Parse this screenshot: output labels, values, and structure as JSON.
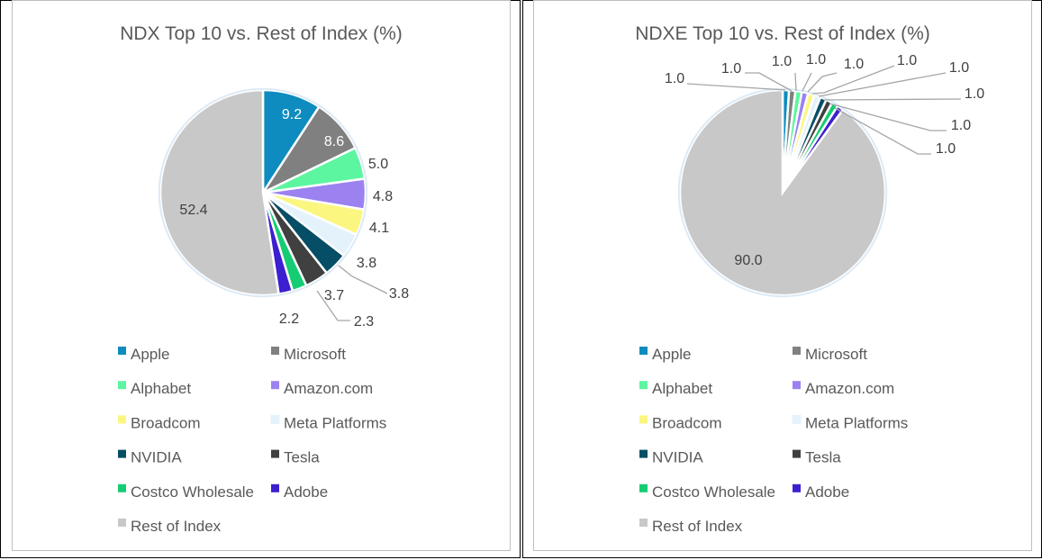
{
  "colors": {
    "Apple": "#0e8cbf",
    "Microsoft": "#808080",
    "Alphabet": "#5cf5a0",
    "Amazon.com": "#9b82f0",
    "Broadcom": "#fbf680",
    "Meta Platforms": "#e4f2fc",
    "NVIDIA": "#064e65",
    "Tesla": "#404040",
    "Costco Wholesale": "#16cc72",
    "Adobe": "#3c1fd0",
    "Rest of Index": "#c8c8c8"
  },
  "chart_data": [
    {
      "type": "pie",
      "title": "NDX Top 10 vs. Rest of Index (%)",
      "categories": [
        "Apple",
        "Microsoft",
        "Alphabet",
        "Amazon.com",
        "Broadcom",
        "Meta Platforms",
        "NVIDIA",
        "Tesla",
        "Costco Wholesale",
        "Adobe",
        "Rest of Index"
      ],
      "values": [
        9.2,
        8.6,
        5.0,
        4.8,
        4.1,
        3.8,
        3.8,
        3.7,
        2.3,
        2.2,
        52.4
      ],
      "labels": [
        "9.2",
        "8.6",
        "5.0",
        "4.8",
        "4.1",
        "3.8",
        "3.8",
        "3.7",
        "2.3",
        "2.2",
        "52.4"
      ],
      "legend": [
        "Apple",
        "Microsoft",
        "Alphabet",
        "Amazon.com",
        "Broadcom",
        "Meta Platforms",
        "NVIDIA",
        "Tesla",
        "Costco Wholesale",
        "Adobe",
        "Rest of Index"
      ],
      "legend_position": "bottom"
    },
    {
      "type": "pie",
      "title": "NDXE Top 10 vs. Rest of Index (%)",
      "categories": [
        "Apple",
        "Microsoft",
        "Alphabet",
        "Amazon.com",
        "Broadcom",
        "Meta Platforms",
        "NVIDIA",
        "Tesla",
        "Costco Wholesale",
        "Adobe",
        "Rest of Index"
      ],
      "values": [
        1.0,
        1.0,
        1.0,
        1.0,
        1.0,
        1.0,
        1.0,
        1.0,
        1.0,
        1.0,
        90.0
      ],
      "labels": [
        "1.0",
        "1.0",
        "1.0",
        "1.0",
        "1.0",
        "1.0",
        "1.0",
        "1.0",
        "1.0",
        "1.0",
        "90.0"
      ],
      "legend": [
        "Apple",
        "Microsoft",
        "Alphabet",
        "Amazon.com",
        "Broadcom",
        "Meta Platforms",
        "NVIDIA",
        "Tesla",
        "Costco Wholesale",
        "Adobe",
        "Rest of Index"
      ],
      "legend_position": "bottom"
    }
  ]
}
